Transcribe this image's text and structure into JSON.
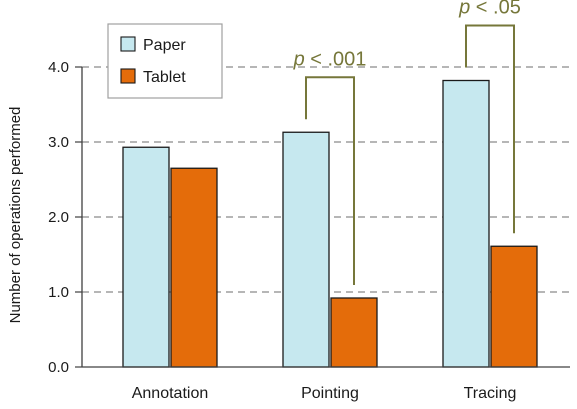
{
  "chart_data": {
    "type": "bar",
    "categories": [
      "Annotation",
      "Pointing",
      "Tracing"
    ],
    "series": [
      {
        "name": "Paper",
        "values": [
          2.93,
          3.13,
          3.82
        ],
        "color": "#c6e8ef"
      },
      {
        "name": "Tablet",
        "values": [
          2.65,
          0.92,
          1.61
        ],
        "color": "#e46c0a"
      }
    ],
    "ylabel": "Number of operations performed",
    "ylim": [
      0,
      4.0
    ],
    "yticks": [
      "0.0",
      "1.0",
      "2.0",
      "3.0",
      "4.0"
    ],
    "grid": true,
    "legend": "top-left",
    "annotations": [
      {
        "category": "Pointing",
        "p": "p",
        "rest": " < .001"
      },
      {
        "category": "Tracing",
        "p": "p",
        "rest": " < .05"
      }
    ],
    "annotation_color": "#76773a"
  }
}
